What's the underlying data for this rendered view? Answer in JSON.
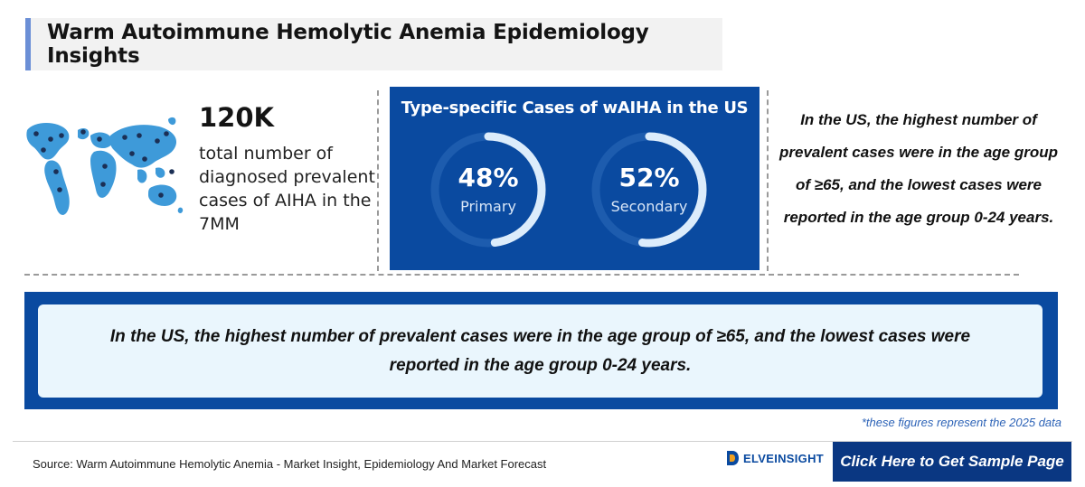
{
  "header": {
    "title": "Warm Autoimmune Hemolytic Anemia Epidemiology Insights"
  },
  "stat": {
    "value": "120K",
    "description": "total number of diagnosed prevalent cases of AIHA in the 7MM",
    "icon": "world-map-icon"
  },
  "type_panel": {
    "title": "Type-specific Cases of wAIHA in the US",
    "items": [
      {
        "percent_label": "48%",
        "label": "Primary",
        "value": 48
      },
      {
        "percent_label": "52%",
        "label": "Secondary",
        "value": 52
      }
    ]
  },
  "right_note": "In the US, the highest number of prevalent cases were in the age group of ≥65, and the lowest cases were reported in the age group 0-24 years.",
  "insight": "In the US, the highest number of prevalent cases were in the age group of ≥65, and the lowest cases were reported in the age group 0-24 years.",
  "footnote": "*these figures represent the 2025 data",
  "footer": {
    "source": "Source: Warm Autoimmune Hemolytic Anemia - Market Insight, Epidemiology And Market Forecast",
    "logo_text": "ELVEINSIGHT",
    "cta_label": "Click Here to Get Sample Page"
  },
  "colors": {
    "primary_blue": "#0a4aa0",
    "dark_blue": "#0a3782",
    "map_blue": "#3e9ad9",
    "ring_active": "#dcecfb",
    "ring_track": "#1d5cae",
    "insight_bg": "#eaf6fd"
  }
}
